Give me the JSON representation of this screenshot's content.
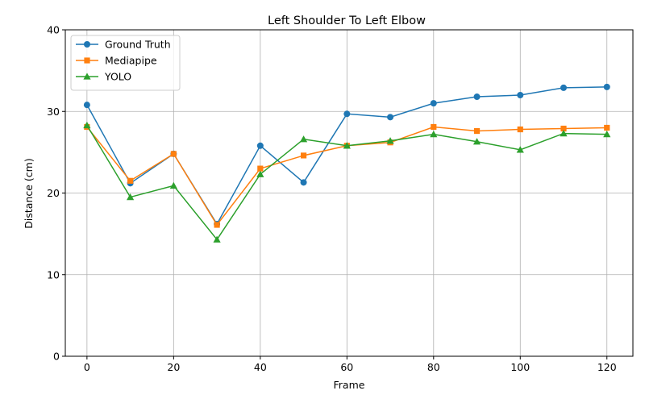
{
  "chart_data": {
    "type": "line",
    "title": "Left Shoulder To Left Elbow",
    "xlabel": "Frame",
    "ylabel": "Distance (cm)",
    "x": [
      0,
      10,
      20,
      30,
      40,
      50,
      60,
      70,
      80,
      90,
      100,
      110,
      120
    ],
    "xlim": [
      -5,
      126
    ],
    "ylim": [
      0,
      40
    ],
    "xticks": [
      0,
      20,
      40,
      60,
      80,
      100,
      120
    ],
    "yticks": [
      0,
      10,
      20,
      30,
      40
    ],
    "grid": true,
    "legend_position": "top-left",
    "series": [
      {
        "name": "Ground Truth",
        "color": "#1f77b4",
        "marker": "circle",
        "values": [
          30.8,
          21.2,
          24.8,
          16.2,
          25.8,
          21.3,
          29.7,
          29.3,
          31.0,
          31.8,
          32.0,
          32.9,
          33.0
        ]
      },
      {
        "name": "Mediapipe",
        "color": "#ff7f0e",
        "marker": "square",
        "values": [
          28.1,
          21.5,
          24.8,
          16.1,
          23.0,
          24.6,
          25.8,
          26.2,
          28.1,
          27.6,
          27.8,
          27.9,
          28.0
        ]
      },
      {
        "name": "YOLO",
        "color": "#2ca02c",
        "marker": "triangle-up",
        "values": [
          28.3,
          19.5,
          20.9,
          14.3,
          22.3,
          26.6,
          25.8,
          26.4,
          27.2,
          26.3,
          25.3,
          27.3,
          27.2
        ]
      }
    ]
  }
}
